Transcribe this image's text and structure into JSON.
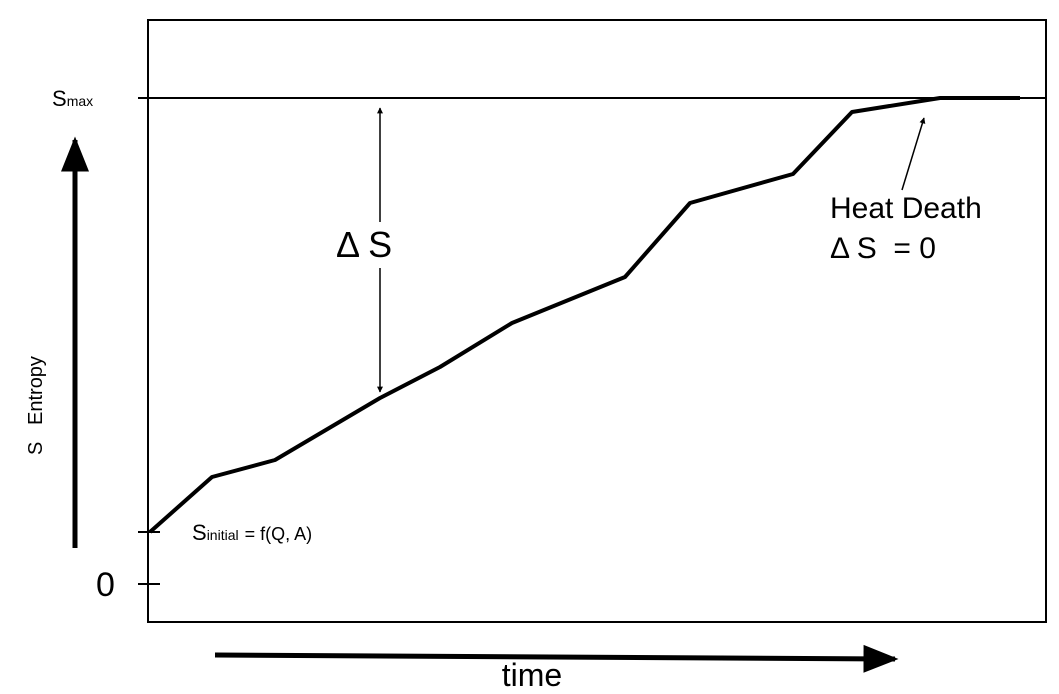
{
  "labels": {
    "s_max": {
      "main": "S",
      "sub": "max"
    },
    "s_initial": {
      "main": "S",
      "sub": "initial",
      "rest": "= f(Q, A)"
    },
    "zero": "0",
    "y_axis": "S   Entropy",
    "x_axis": "time",
    "delta_s": "Δ S",
    "heat_death": {
      "line1": "Heat Death",
      "line2": "Δ S  = 0"
    }
  }
}
